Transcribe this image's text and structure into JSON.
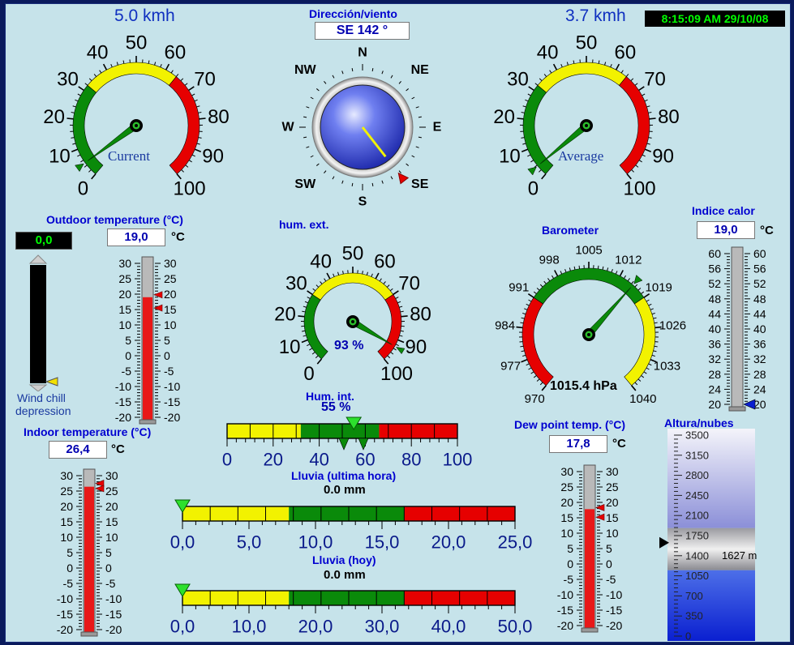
{
  "clock": "8:15:09 AM 29/10/08",
  "wind_current": {
    "speed_label": "5.0 kmh",
    "dial_label": "Current",
    "scale": [
      "0",
      "10",
      "20",
      "30",
      "40",
      "50",
      "60",
      "70",
      "80",
      "90",
      "100"
    ],
    "value_kmh": 5.0,
    "colors": {
      "green": "#0a8a0a",
      "yellow": "#f2f200",
      "red": "#e60000"
    }
  },
  "wind_average": {
    "speed_label": "3.7 kmh",
    "dial_label": "Average",
    "scale": [
      "0",
      "10",
      "20",
      "30",
      "40",
      "50",
      "60",
      "70",
      "80",
      "90",
      "100"
    ],
    "value_kmh": 3.7
  },
  "wind_direction": {
    "title": "Dirección/viento",
    "value": "SE  142 °",
    "degrees": 142,
    "compass": [
      "N",
      "NE",
      "E",
      "SE",
      "S",
      "SW",
      "W",
      "NW"
    ]
  },
  "hum_ext": {
    "title": "hum. ext.",
    "value_label": "93 %",
    "value": 93,
    "scale": [
      "0",
      "10",
      "20",
      "30",
      "40",
      "50",
      "60",
      "70",
      "80",
      "90",
      "100"
    ]
  },
  "barometer": {
    "title": "Barometer",
    "value_label": "1015.4 hPa",
    "value": 1015.4,
    "scale": [
      "970",
      "977",
      "984",
      "991",
      "998",
      "1005",
      "1012",
      "1019",
      "1026",
      "1033",
      "1040"
    ]
  },
  "outdoor_temp": {
    "title": "Outdoor temperature (°C)",
    "value": "19,0",
    "unit": "°C",
    "level_c": 19.0,
    "scale": [
      "30",
      "25",
      "20",
      "15",
      "10",
      "5",
      "0",
      "-5",
      "-10",
      "-15",
      "-20"
    ]
  },
  "wind_chill": {
    "value": "0,0",
    "label_line1": "Wind chill",
    "label_line2": "depression"
  },
  "indoor_temp": {
    "title": "Indoor temperature (°C)",
    "value": "26,4",
    "unit": "°C",
    "level_c": 26.4,
    "scale": [
      "30",
      "25",
      "20",
      "15",
      "10",
      "5",
      "0",
      "-5",
      "-10",
      "-15",
      "-20"
    ]
  },
  "dew_point": {
    "title": "Dew point temp. (°C)",
    "value": "17,8",
    "unit": "°C",
    "level_c": 17.8,
    "scale": [
      "30",
      "25",
      "20",
      "15",
      "10",
      "5",
      "0",
      "-5",
      "-10",
      "-15",
      "-20"
    ]
  },
  "heat_index": {
    "title": "Indice calor",
    "value": "19,0",
    "unit": "°C",
    "level_c": 19.0,
    "scale": [
      "60",
      "56",
      "52",
      "48",
      "44",
      "40",
      "36",
      "32",
      "28",
      "24",
      "20"
    ]
  },
  "hum_int": {
    "title": "Hum. int.",
    "value_label": "55 %",
    "value": 55,
    "scale": [
      "0",
      "20",
      "40",
      "60",
      "80",
      "100"
    ]
  },
  "rain_hour": {
    "title": "Lluvia (ultima hora)",
    "value": "0.0 mm",
    "amount": 0.0,
    "scale": [
      "0,0",
      "5,0",
      "10,0",
      "15,0",
      "20,0",
      "25,0"
    ]
  },
  "rain_today": {
    "title": "Lluvia (hoy)",
    "value": "0.0 mm",
    "amount": 0.0,
    "scale": [
      "0,0",
      "10,0",
      "20,0",
      "30,0",
      "40,0",
      "50,0"
    ]
  },
  "cloud_height": {
    "title": "Altura/nubes",
    "value_label": "1627 m",
    "value": 1627,
    "scale": [
      "3500",
      "3150",
      "2800",
      "2450",
      "2100",
      "1750",
      "1400",
      "1050",
      "700",
      "350",
      "0"
    ]
  }
}
